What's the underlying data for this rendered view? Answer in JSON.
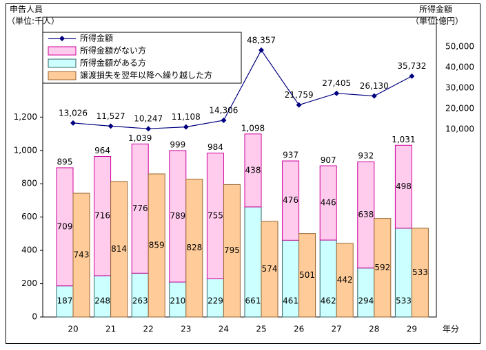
{
  "chart_data": {
    "type": "bar",
    "y_label": "申告人員",
    "y_unit": "（単位:千人）",
    "y2_label": "所得金額",
    "y2_unit": "（単位:億円）",
    "x_label": "年分",
    "categories": [
      "20",
      "21",
      "22",
      "23",
      "24",
      "25",
      "26",
      "27",
      "28",
      "29"
    ],
    "ylim": [
      0,
      1800
    ],
    "yticks": [
      0,
      200,
      400,
      600,
      800,
      {
        "value": 1000,
        "label": "1,000"
      },
      {
        "value": 1200,
        "label": "1,200"
      }
    ],
    "y2lim": [
      -81000,
      64300
    ],
    "y2ticks": [
      {
        "value": 10000,
        "label": "10,000"
      },
      {
        "value": 20000,
        "label": "20,000"
      },
      {
        "value": 30000,
        "label": "30,000"
      },
      {
        "value": 40000,
        "label": "40,000"
      },
      {
        "value": 50000,
        "label": "50,000"
      }
    ],
    "series": [
      {
        "name": "所得金額",
        "type": "line",
        "axis": "y2",
        "color": "#000080",
        "values": [
          13026,
          11527,
          10247,
          11108,
          14306,
          48357,
          21759,
          27405,
          26130,
          35732
        ],
        "value_labels": [
          "13,026",
          "11,527",
          "10,247",
          "11,108",
          "14,306",
          "48,357",
          "21,759",
          "27,405",
          "26,130",
          "35,732"
        ]
      },
      {
        "name": "所得金額がない方",
        "color": "#ffccee",
        "edge": "#cc0099",
        "values": [
          709,
          716,
          776,
          789,
          755,
          438,
          476,
          446,
          638,
          498
        ]
      },
      {
        "name": "所得金額がある方",
        "color": "#ccffff",
        "edge": "#336666",
        "values": [
          187,
          248,
          263,
          210,
          229,
          661,
          461,
          462,
          294,
          533
        ]
      },
      {
        "name": "譲渡損失を翌年以降へ繰り越した方",
        "color": "#ffcc99",
        "edge": "#996633",
        "values": [
          743,
          814,
          859,
          828,
          795,
          574,
          501,
          442,
          592,
          533
        ]
      }
    ],
    "totals": {
      "values": [
        895,
        964,
        1039,
        999,
        984,
        1098,
        937,
        907,
        932,
        1031
      ],
      "value_labels": [
        "895",
        "964",
        "1,039",
        "999",
        "984",
        "1,098",
        "937",
        "907",
        "932",
        "1,031"
      ]
    }
  }
}
